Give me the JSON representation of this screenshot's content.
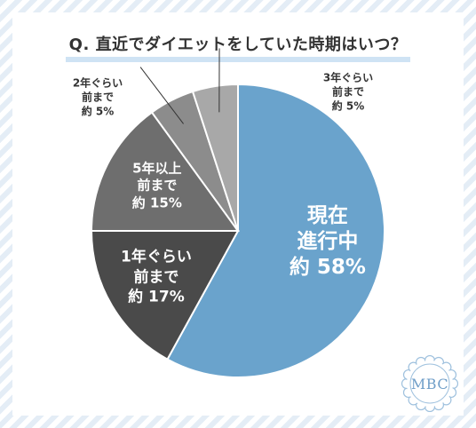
{
  "title": "Q. 直近でダイエットをしていた時期はいつ？",
  "chart_data": {
    "type": "pie",
    "title": "Q. 直近でダイエットをしていた時期はいつ？",
    "slices": [
      {
        "lines": [
          "現在",
          "進行中"
        ],
        "prefix": "約",
        "value": 58,
        "color": "#6aa3cc"
      },
      {
        "lines": [
          "1年ぐらい",
          "前まで"
        ],
        "prefix": "約",
        "value": 17,
        "color": "#4a4a4a"
      },
      {
        "lines": [
          "5年以上",
          "前まで"
        ],
        "prefix": "約",
        "value": 15,
        "color": "#6e6e6e"
      },
      {
        "lines": [
          "2年ぐらい",
          "前まで"
        ],
        "prefix": "約",
        "value": 5,
        "color": "#8c8c8c"
      },
      {
        "lines": [
          "3年ぐらい",
          "前まで"
        ],
        "prefix": "約",
        "value": 5,
        "color": "#a8a8a8"
      }
    ],
    "unit": "%"
  },
  "logo": {
    "text": "MBC"
  }
}
